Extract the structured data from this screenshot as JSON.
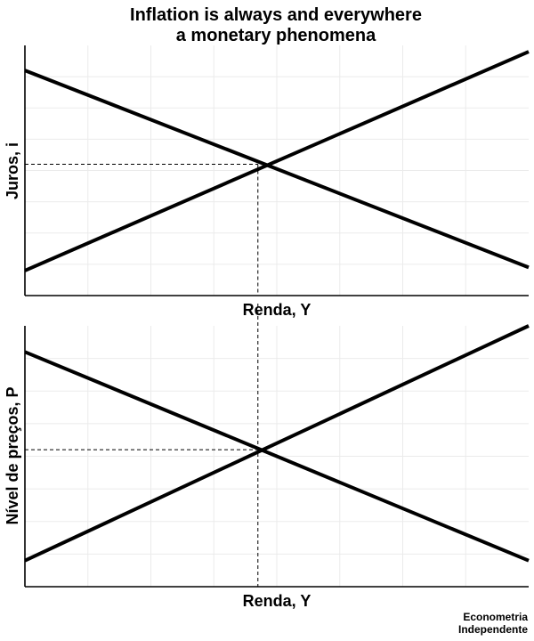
{
  "title_lines": [
    "Inflation is always and everywhere",
    "a monetary phenomena"
  ],
  "caption_lines": [
    "Econometria",
    "Independente"
  ],
  "chart_data": [
    {
      "type": "line",
      "xlabel": "Renda, Y",
      "ylabel": "Juros, i",
      "xlim": [
        0,
        8
      ],
      "ylim": [
        0,
        8
      ],
      "grid": true,
      "series": [
        {
          "x": [
            0,
            8
          ],
          "y": [
            7.2,
            0.9
          ]
        },
        {
          "x": [
            0,
            8
          ],
          "y": [
            0.8,
            7.8
          ]
        }
      ],
      "equilibrium": {
        "x": 3.7,
        "y": 4.2
      }
    },
    {
      "type": "line",
      "xlabel": "Renda, Y",
      "ylabel": "Nível de preços, P",
      "xlim": [
        0,
        8
      ],
      "ylim": [
        0,
        8
      ],
      "grid": true,
      "series": [
        {
          "x": [
            0,
            8
          ],
          "y": [
            7.2,
            0.8
          ]
        },
        {
          "x": [
            0,
            8
          ],
          "y": [
            0.8,
            8.0
          ]
        }
      ],
      "equilibrium": {
        "x": 3.7,
        "y": 4.2
      }
    }
  ]
}
